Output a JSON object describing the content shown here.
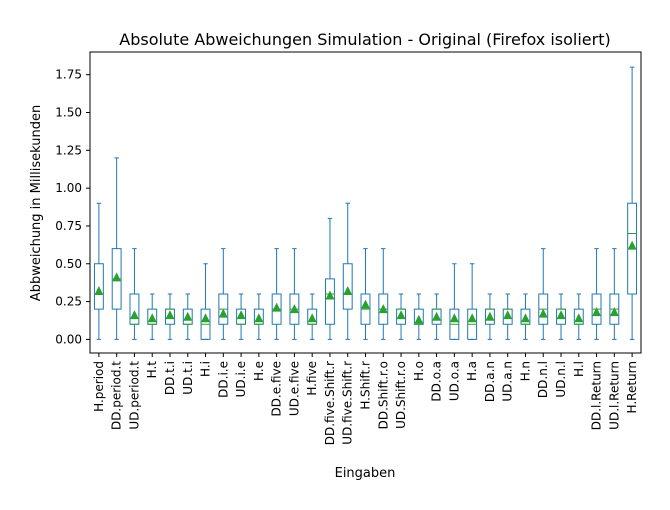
{
  "chart_data": {
    "type": "box",
    "title": "Absolute Abweichungen Simulation - Original (Firefox isoliert)",
    "xlabel": "Eingaben",
    "ylabel": "Abbweichung in Millisekunden",
    "ylim": [
      -0.09,
      1.9
    ],
    "yticks": [
      0.0,
      0.25,
      0.5,
      0.75,
      1.0,
      1.25,
      1.5,
      1.75
    ],
    "ytick_labels": [
      "0.00",
      "0.25",
      "0.50",
      "0.75",
      "1.00",
      "1.25",
      "1.50",
      "1.75"
    ],
    "grid": false,
    "colors": {
      "box": "#1f77b4",
      "median": "#2ca02c",
      "mean_marker": "#2ca02c"
    },
    "categories": [
      "H.period",
      "DD.period.t",
      "UD.period.t",
      "H.t",
      "DD.t.i",
      "UD.t.i",
      "H.i",
      "DD.i.e",
      "UD.i.e",
      "H.e",
      "DD.e.five",
      "UD.e.five",
      "H.five",
      "DD.five.Shift.r",
      "UD.five.Shift.r",
      "H.Shift.r",
      "DD.Shift.r.o",
      "UD.Shift.r.o",
      "H.o",
      "DD.o.a",
      "UD.o.a",
      "H.a",
      "DD.a.n",
      "UD.a.n",
      "H.n",
      "DD.n.l",
      "UD.n.l",
      "H.l",
      "DD.l.Return",
      "UD.l.Return",
      "H.Return"
    ],
    "boxes": [
      {
        "min": 0.0,
        "q1": 0.2,
        "median": 0.3,
        "q3": 0.5,
        "max": 0.9,
        "mean": 0.32
      },
      {
        "min": 0.0,
        "q1": 0.2,
        "median": 0.4,
        "q3": 0.6,
        "max": 1.2,
        "mean": 0.41
      },
      {
        "min": 0.0,
        "q1": 0.1,
        "median": 0.1,
        "q3": 0.3,
        "max": 0.6,
        "mean": 0.16
      },
      {
        "min": 0.0,
        "q1": 0.1,
        "median": 0.1,
        "q3": 0.2,
        "max": 0.3,
        "mean": 0.14
      },
      {
        "min": 0.0,
        "q1": 0.1,
        "median": 0.2,
        "q3": 0.2,
        "max": 0.3,
        "mean": 0.16
      },
      {
        "min": 0.0,
        "q1": 0.1,
        "median": 0.1,
        "q3": 0.2,
        "max": 0.3,
        "mean": 0.15
      },
      {
        "min": 0.0,
        "q1": 0.0,
        "median": 0.1,
        "q3": 0.2,
        "max": 0.5,
        "mean": 0.14
      },
      {
        "min": 0.0,
        "q1": 0.1,
        "median": 0.2,
        "q3": 0.3,
        "max": 0.6,
        "mean": 0.17
      },
      {
        "min": 0.0,
        "q1": 0.1,
        "median": 0.1,
        "q3": 0.2,
        "max": 0.3,
        "mean": 0.16
      },
      {
        "min": 0.0,
        "q1": 0.1,
        "median": 0.1,
        "q3": 0.2,
        "max": 0.3,
        "mean": 0.14
      },
      {
        "min": 0.0,
        "q1": 0.1,
        "median": 0.2,
        "q3": 0.3,
        "max": 0.6,
        "mean": 0.21
      },
      {
        "min": 0.0,
        "q1": 0.1,
        "median": 0.2,
        "q3": 0.3,
        "max": 0.6,
        "mean": 0.2
      },
      {
        "min": 0.0,
        "q1": 0.1,
        "median": 0.1,
        "q3": 0.2,
        "max": 0.3,
        "mean": 0.14
      },
      {
        "min": 0.0,
        "q1": 0.1,
        "median": 0.3,
        "q3": 0.4,
        "max": 0.8,
        "mean": 0.29
      },
      {
        "min": 0.0,
        "q1": 0.2,
        "median": 0.3,
        "q3": 0.5,
        "max": 0.9,
        "mean": 0.32
      },
      {
        "min": 0.0,
        "q1": 0.1,
        "median": 0.2,
        "q3": 0.3,
        "max": 0.6,
        "mean": 0.23
      },
      {
        "min": 0.0,
        "q1": 0.1,
        "median": 0.2,
        "q3": 0.3,
        "max": 0.6,
        "mean": 0.2
      },
      {
        "min": 0.0,
        "q1": 0.1,
        "median": 0.2,
        "q3": 0.2,
        "max": 0.3,
        "mean": 0.16
      },
      {
        "min": 0.0,
        "q1": 0.1,
        "median": 0.1,
        "q3": 0.2,
        "max": 0.3,
        "mean": 0.13
      },
      {
        "min": 0.0,
        "q1": 0.1,
        "median": 0.2,
        "q3": 0.2,
        "max": 0.3,
        "mean": 0.15
      },
      {
        "min": 0.0,
        "q1": 0.0,
        "median": 0.1,
        "q3": 0.2,
        "max": 0.5,
        "mean": 0.14
      },
      {
        "min": 0.0,
        "q1": 0.0,
        "median": 0.1,
        "q3": 0.2,
        "max": 0.5,
        "mean": 0.14
      },
      {
        "min": 0.0,
        "q1": 0.1,
        "median": 0.2,
        "q3": 0.2,
        "max": 0.3,
        "mean": 0.15
      },
      {
        "min": 0.0,
        "q1": 0.1,
        "median": 0.2,
        "q3": 0.2,
        "max": 0.3,
        "mean": 0.16
      },
      {
        "min": 0.0,
        "q1": 0.1,
        "median": 0.1,
        "q3": 0.2,
        "max": 0.3,
        "mean": 0.14
      },
      {
        "min": 0.0,
        "q1": 0.1,
        "median": 0.2,
        "q3": 0.3,
        "max": 0.6,
        "mean": 0.17
      },
      {
        "min": 0.0,
        "q1": 0.1,
        "median": 0.2,
        "q3": 0.2,
        "max": 0.3,
        "mean": 0.16
      },
      {
        "min": 0.0,
        "q1": 0.1,
        "median": 0.1,
        "q3": 0.2,
        "max": 0.3,
        "mean": 0.14
      },
      {
        "min": 0.0,
        "q1": 0.1,
        "median": 0.2,
        "q3": 0.3,
        "max": 0.6,
        "mean": 0.18
      },
      {
        "min": 0.0,
        "q1": 0.1,
        "median": 0.2,
        "q3": 0.3,
        "max": 0.6,
        "mean": 0.18
      },
      {
        "min": 0.0,
        "q1": 0.3,
        "median": 0.7,
        "q3": 0.9,
        "max": 1.8,
        "mean": 0.62
      }
    ]
  }
}
